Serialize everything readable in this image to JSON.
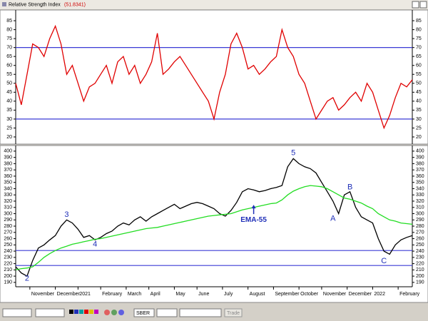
{
  "window": {
    "title": "Relative Strength Index",
    "value_label": "(51.8341)"
  },
  "chart_data": [
    {
      "type": "line",
      "x": [
        0,
        1,
        2,
        3,
        4,
        5,
        6,
        7,
        8,
        9,
        10,
        11,
        12,
        13,
        14,
        15,
        16,
        17,
        18,
        19,
        20,
        21,
        22,
        23,
        24,
        25,
        26,
        27,
        28,
        29,
        30,
        31,
        32,
        33,
        34,
        35,
        36,
        37,
        38,
        39,
        40,
        41,
        42,
        43,
        44,
        45,
        46,
        47,
        48,
        49,
        50,
        51,
        52,
        53,
        54,
        55,
        56,
        57,
        58,
        59,
        60,
        61,
        62,
        63,
        64,
        65,
        66,
        67,
        68,
        69,
        70
      ],
      "series": [
        {
          "color": "#e00000",
          "values": [
            50,
            38,
            55,
            72,
            70,
            65,
            75,
            82,
            72,
            55,
            60,
            50,
            40,
            48,
            50,
            55,
            60,
            50,
            62,
            65,
            55,
            60,
            50,
            55,
            62,
            78,
            55,
            58,
            62,
            65,
            60,
            55,
            50,
            45,
            40,
            30,
            45,
            55,
            72,
            78,
            70,
            58,
            60,
            55,
            58,
            62,
            65,
            80,
            70,
            65,
            55,
            50,
            40,
            30,
            35,
            40,
            42,
            35,
            38,
            42,
            45,
            40,
            50,
            45,
            35,
            25,
            32,
            42,
            50,
            48,
            52
          ]
        }
      ],
      "hlines": [
        70,
        30
      ],
      "hline_color": "#3b3bd6",
      "xlim": [
        0,
        70
      ],
      "ylim": [
        16,
        91
      ],
      "yticks": [
        20,
        25,
        30,
        35,
        40,
        45,
        50,
        55,
        60,
        65,
        70,
        75,
        80,
        85
      ]
    },
    {
      "type": "line",
      "x": [
        0,
        1,
        2,
        3,
        4,
        5,
        6,
        7,
        8,
        9,
        10,
        11,
        12,
        13,
        14,
        15,
        16,
        17,
        18,
        19,
        20,
        21,
        22,
        23,
        24,
        25,
        26,
        27,
        28,
        29,
        30,
        31,
        32,
        33,
        34,
        35,
        36,
        37,
        38,
        39,
        40,
        41,
        42,
        43,
        44,
        45,
        46,
        47,
        48,
        49,
        50,
        51,
        52,
        53,
        54,
        55,
        56,
        57,
        58,
        59,
        60,
        61,
        62,
        63,
        64,
        65,
        66,
        67,
        68,
        69,
        70
      ],
      "series": [
        {
          "color": "#000000",
          "values": [
            215,
            205,
            200,
            225,
            245,
            250,
            258,
            265,
            280,
            290,
            285,
            275,
            262,
            265,
            258,
            262,
            268,
            272,
            280,
            285,
            282,
            290,
            295,
            288,
            295,
            300,
            305,
            310,
            315,
            308,
            312,
            316,
            318,
            316,
            312,
            308,
            300,
            296,
            305,
            318,
            335,
            340,
            338,
            335,
            337,
            340,
            342,
            345,
            375,
            388,
            380,
            375,
            372,
            365,
            350,
            335,
            320,
            300,
            330,
            335,
            310,
            295,
            290,
            285,
            260,
            240,
            235,
            250,
            258,
            262,
            265
          ]
        },
        {
          "name": "EMA-55",
          "color": "#22dd22",
          "values": [
            210,
            212,
            213,
            215,
            222,
            230,
            236,
            241,
            245,
            248,
            251,
            253,
            255,
            257,
            259,
            260,
            262,
            264,
            266,
            268,
            270,
            272,
            274,
            276,
            277,
            278,
            280,
            282,
            284,
            286,
            288,
            290,
            292,
            294,
            296,
            297,
            298,
            299,
            300,
            303,
            306,
            308,
            310,
            312,
            314,
            316,
            317,
            322,
            330,
            336,
            340,
            343,
            345,
            344,
            343,
            340,
            335,
            330,
            325,
            323,
            320,
            317,
            312,
            308,
            300,
            295,
            290,
            288,
            285,
            284,
            283
          ]
        }
      ],
      "hlines": [
        241,
        217
      ],
      "hline_color": "#3b3bd6",
      "annotations": [
        "2",
        "3",
        "4",
        "5",
        "A",
        "B",
        "C"
      ],
      "xlim": [
        0,
        70
      ],
      "ylim": [
        183,
        409
      ],
      "yticks": [
        190,
        200,
        210,
        220,
        230,
        240,
        250,
        260,
        270,
        280,
        290,
        300,
        310,
        320,
        330,
        340,
        350,
        360,
        370,
        380,
        390,
        400
      ],
      "xticks": [
        {
          "value": 2.5,
          "label": "November"
        },
        {
          "value": 7,
          "label": "December"
        },
        {
          "value": 11,
          "label": "2021"
        },
        {
          "value": 15,
          "label": "February"
        },
        {
          "value": 19.5,
          "label": "March"
        },
        {
          "value": 23.5,
          "label": "April"
        },
        {
          "value": 28,
          "label": "May"
        },
        {
          "value": 32,
          "label": "June"
        },
        {
          "value": 36.5,
          "label": "July"
        },
        {
          "value": 41,
          "label": "August"
        },
        {
          "value": 45.5,
          "label": "September"
        },
        {
          "value": 50,
          "label": "October"
        },
        {
          "value": 54,
          "label": "November"
        },
        {
          "value": 58.5,
          "label": "December"
        },
        {
          "value": 63,
          "label": "2022"
        },
        {
          "value": 67.5,
          "label": "February"
        }
      ]
    }
  ],
  "toolbar": {
    "symbol": "SBER",
    "button": "Trade"
  }
}
